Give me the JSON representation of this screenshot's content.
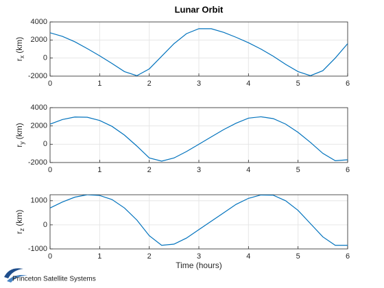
{
  "footer": "Princeton Satellite Systems",
  "chart_data": [
    {
      "type": "line",
      "title": "Lunar Orbit",
      "ylabel": {
        "base": "r",
        "sub": "x",
        "unit": "(km)"
      },
      "x": [
        0,
        0.25,
        0.5,
        0.75,
        1,
        1.25,
        1.5,
        1.75,
        2,
        2.25,
        2.5,
        2.75,
        3,
        3.25,
        3.5,
        3.75,
        4,
        4.25,
        4.5,
        4.75,
        5,
        5.25,
        5.5,
        5.75,
        6
      ],
      "series": [
        {
          "color": "#0072bd",
          "values": [
            2800,
            2400,
            1800,
            1050,
            250,
            -600,
            -1500,
            -1950,
            -1200,
            200,
            1600,
            2700,
            3250,
            3250,
            2850,
            2300,
            1700,
            1000,
            200,
            -700,
            -1500,
            -1950,
            -1400,
            0,
            1600
          ]
        }
      ],
      "xlim": [
        0,
        6
      ],
      "xticks": [
        0,
        1,
        2,
        3,
        4,
        5,
        6
      ],
      "ylim": [
        -2000,
        4000
      ],
      "yticks": [
        -2000,
        0,
        2000,
        4000
      ],
      "grid": true
    },
    {
      "type": "line",
      "ylabel": {
        "base": "r",
        "sub": "y",
        "unit": "(km)"
      },
      "x": [
        0,
        0.25,
        0.5,
        0.75,
        1,
        1.25,
        1.5,
        1.75,
        2,
        2.25,
        2.5,
        2.75,
        3,
        3.25,
        3.5,
        3.75,
        4,
        4.25,
        4.5,
        4.75,
        5,
        5.25,
        5.5,
        5.75,
        6
      ],
      "series": [
        {
          "color": "#0072bd",
          "values": [
            2200,
            2700,
            2980,
            2950,
            2600,
            1950,
            1000,
            -200,
            -1500,
            -1850,
            -1500,
            -800,
            0,
            800,
            1600,
            2300,
            2850,
            3000,
            2800,
            2200,
            1300,
            200,
            -1000,
            -1800,
            -1700
          ]
        }
      ],
      "xlim": [
        0,
        6
      ],
      "xticks": [
        0,
        1,
        2,
        3,
        4,
        5,
        6
      ],
      "ylim": [
        -2000,
        4000
      ],
      "yticks": [
        -2000,
        0,
        2000,
        4000
      ],
      "grid": true
    },
    {
      "type": "line",
      "ylabel": {
        "base": "r",
        "sub": "z",
        "unit": "(km)"
      },
      "xlabel": "Time (hours)",
      "x": [
        0,
        0.25,
        0.5,
        0.75,
        1,
        1.25,
        1.5,
        1.75,
        2,
        2.25,
        2.5,
        2.75,
        3,
        3.25,
        3.5,
        3.75,
        4,
        4.25,
        4.5,
        4.75,
        5,
        5.25,
        5.5,
        5.75,
        6
      ],
      "series": [
        {
          "color": "#0072bd",
          "values": [
            700,
            950,
            1150,
            1250,
            1220,
            1050,
            700,
            200,
            -450,
            -850,
            -800,
            -550,
            -200,
            150,
            500,
            850,
            1100,
            1240,
            1230,
            1000,
            600,
            50,
            -500,
            -850,
            -850
          ]
        }
      ],
      "xlim": [
        0,
        6
      ],
      "xticks": [
        0,
        1,
        2,
        3,
        4,
        5,
        6
      ],
      "ylim": [
        -1000,
        1250
      ],
      "yticks": [
        -1000,
        0,
        1000
      ],
      "grid": true
    }
  ]
}
